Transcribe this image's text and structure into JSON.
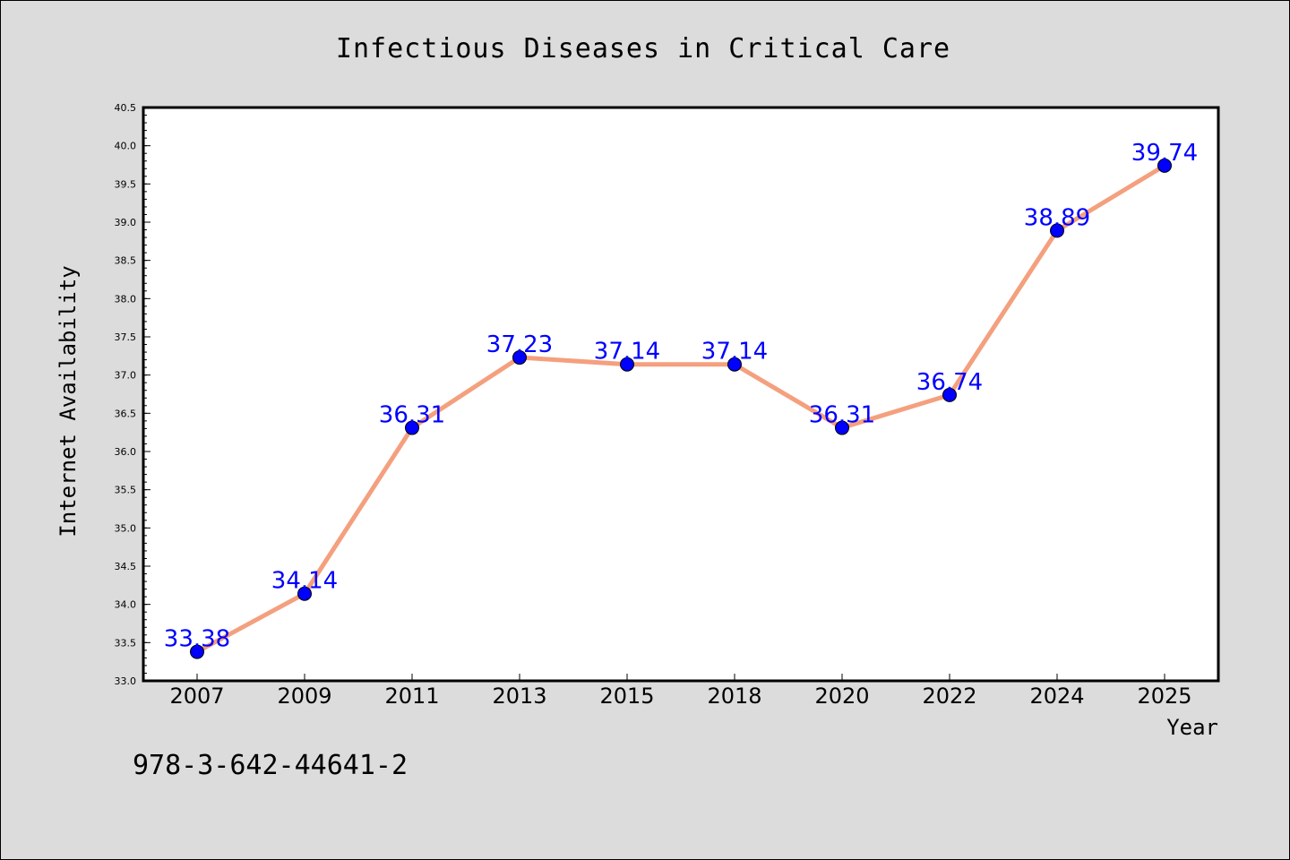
{
  "chart_data": {
    "type": "line",
    "title": "Infectious Diseases in Critical Care",
    "xlabel": "Year",
    "ylabel": "Internet Availability",
    "categories": [
      "2007",
      "2009",
      "2011",
      "2013",
      "2015",
      "2018",
      "2020",
      "2022",
      "2024",
      "2025"
    ],
    "values": [
      33.38,
      34.14,
      36.31,
      37.23,
      37.14,
      37.14,
      36.31,
      36.74,
      38.89,
      39.74
    ],
    "data_labels": [
      "33.38",
      "34.14",
      "36.31",
      "37.23",
      "37.14",
      "37.14",
      "36.31",
      "36.74",
      "38.89",
      "39.74"
    ],
    "ylim": [
      33.0,
      40.5
    ],
    "yticks": [
      "33.0",
      "33.5",
      "34.0",
      "34.5",
      "35.0",
      "35.5",
      "36.0",
      "36.5",
      "37.0",
      "37.5",
      "38.0",
      "38.5",
      "39.0",
      "39.5",
      "40.0",
      "40.5"
    ],
    "grid": false,
    "line_color": "#f4a07e",
    "marker_color": "#0000ff",
    "label_color": "#0000ff"
  },
  "footer_text": "978-3-642-44641-2"
}
